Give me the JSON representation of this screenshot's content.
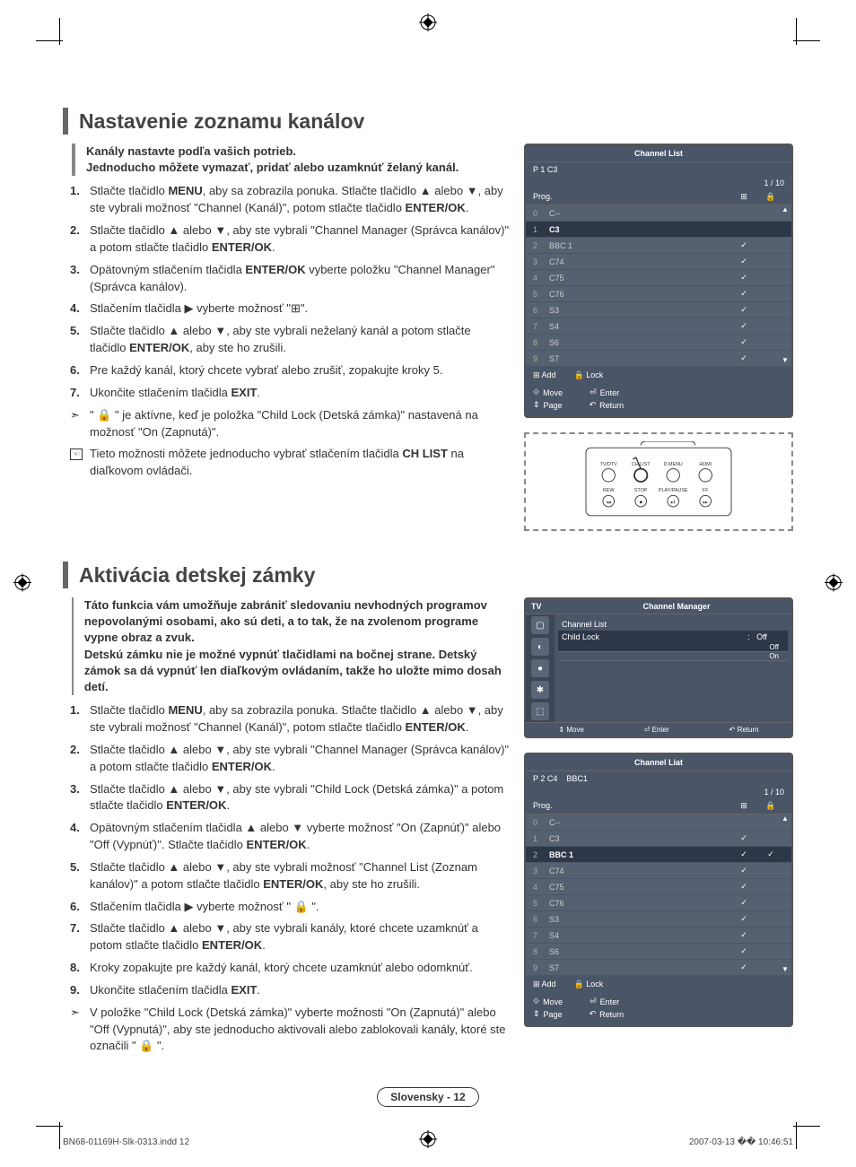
{
  "section1": {
    "heading": "Nastavenie zoznamu kanálov",
    "intro_l1": "Kanály nastavte podľa vašich potrieb.",
    "intro_l2": "Jednoducho môžete vymazať, pridať alebo uzamknúť želaný kanál.",
    "steps": [
      "Stlačte tlačidlo <b>MENU</b>, aby sa zobrazila ponuka. Stlačte tlačidlo ▲ alebo ▼, aby ste vybrali možnosť \"Channel (Kanál)\", potom stlačte tlačidlo <b>ENTER/OK</b>.",
      "Stlačte tlačidlo ▲ alebo ▼, aby ste vybrali \"Channel Manager (Správca kanálov)\" a potom stlačte tlačidlo <b>ENTER/OK</b>.",
      "Opätovným stlačením tlačidla <b>ENTER/OK</b> vyberte položku \"Channel Manager\" (Správca kanálov).",
      "Stlačením tlačidla ▶ vyberte možnosť \"⊞\".",
      "Stlačte tlačidlo ▲ alebo ▼, aby ste vybrali neželaný kanál a potom stlačte tlačidlo <b>ENTER/OK</b>, aby ste ho zrušili.",
      "Pre každý kanál, ktorý chcete vybrať alebo zrušiť, zopakujte kroky 5.",
      "Ukončite stlačením tlačidla <b>EXIT</b>."
    ],
    "note1": "\" 🔒 \" je aktívne, keď je položka \"Child Lock (Detská zámka)\" nastavená na možnosť \"On (Zapnutá)\".",
    "note2": "Tieto možnosti môžete jednoducho vybrať stlačením tlačidla <b>CH LIST</b> na diaľkovom ovládači."
  },
  "section2": {
    "heading": "Aktivácia detskej zámky",
    "intro": "Táto funkcia vám umožňuje zabrániť sledovaniu nevhodných programov nepovolanými osobami, ako sú deti, a to tak, že na zvolenom programe vypne obraz a zvuk.\nDetskú zámku nie je možné vypnúť tlačidlami na bočnej strane. Detský zámok sa dá vypnúť len diaľkovým ovládaním, takže ho uložte mimo dosah detí.",
    "steps": [
      "Stlačte tlačidlo <b>MENU</b>, aby sa zobrazila ponuka. Stlačte tlačidlo ▲ alebo ▼, aby ste vybrali možnosť \"Channel (Kanál)\", potom stlačte tlačidlo <b>ENTER/OK</b>.",
      "Stlačte tlačidlo ▲ alebo ▼, aby ste vybrali \"Channel Manager (Správca kanálov)\" a potom stlačte tlačidlo <b>ENTER/OK</b>.",
      "Stlačte tlačidlo ▲ alebo ▼, aby ste vybrali \"Child Lock (Detská zámka)\" a potom stlačte tlačidlo <b>ENTER/OK</b>.",
      "Opätovným stlačením tlačidla ▲ alebo ▼ vyberte možnosť \"On (Zapnúť)\" alebo \"Off (Vypnúť)\". Stlačte tlačidlo <b>ENTER/OK</b>.",
      "Stlačte tlačidlo ▲ alebo ▼, aby ste vybrali možnosť \"Channel List (Zoznam kanálov)\" a potom stlačte tlačidlo <b>ENTER/OK</b>, aby ste ho zrušili.",
      "Stlačením tlačidla ▶ vyberte možnosť \" 🔒 \".",
      "Stlačte tlačidlo ▲ alebo ▼, aby ste vybrali kanály, ktoré chcete uzamknúť a potom stlačte tlačidlo <b>ENTER/OK</b>.",
      "Kroky zopakujte pre každý kanál, ktorý chcete uzamknúť alebo odomknúť.",
      "Ukončite stlačením tlačidla <b>EXIT</b>."
    ],
    "note1": "V položke \"Child Lock (Detská zámka)\" vyberte možnosti \"On (Zapnutá)\" alebo \"Off (Vypnutá)\", aby ste jednoducho aktivovali alebo zablokovali kanály, ktoré ste označili \" 🔒 \"."
  },
  "osd1": {
    "title": "Channel List",
    "sub": "P  1  C3",
    "counter": "1 / 10",
    "prog": "Prog.",
    "rows": [
      {
        "n": "0",
        "name": "C--",
        "add": "",
        "lock": "",
        "hl": false
      },
      {
        "n": "1",
        "name": "C3",
        "add": "",
        "lock": "",
        "hl": true
      },
      {
        "n": "2",
        "name": "BBC 1",
        "add": "✓",
        "lock": "",
        "hl": false
      },
      {
        "n": "3",
        "name": "C74",
        "add": "✓",
        "lock": "",
        "hl": false
      },
      {
        "n": "4",
        "name": "C75",
        "add": "✓",
        "lock": "",
        "hl": false
      },
      {
        "n": "5",
        "name": "C76",
        "add": "✓",
        "lock": "",
        "hl": false
      },
      {
        "n": "6",
        "name": "S3",
        "add": "✓",
        "lock": "",
        "hl": false
      },
      {
        "n": "7",
        "name": "S4",
        "add": "✓",
        "lock": "",
        "hl": false
      },
      {
        "n": "8",
        "name": "S6",
        "add": "✓",
        "lock": "",
        "hl": false
      },
      {
        "n": "9",
        "name": "S7",
        "add": "✓",
        "lock": "",
        "hl": false
      }
    ],
    "f_add": "Add",
    "f_lock": "Lock",
    "f_move": "Move",
    "f_enter": "Enter",
    "f_page": "Page",
    "f_return": "Return"
  },
  "remote": {
    "labels": [
      "TV/DTV",
      "CH LIST",
      "D.MENU",
      "HDMI",
      "REW",
      "STOP",
      "PLAY/PAUSE",
      "FF"
    ]
  },
  "menu_osd": {
    "tv": "TV",
    "title": "Channel Manager",
    "row1": "Channel List",
    "row2": "Child Lock",
    "col": ":",
    "off": "Off",
    "on": "On",
    "f_move": "Move",
    "f_enter": "Enter",
    "f_return": "Return"
  },
  "osd2": {
    "title": "Channel Liat",
    "sub": "P  2  C4",
    "sub2": "BBC1",
    "counter": "1 / 10",
    "prog": "Prog.",
    "rows": [
      {
        "n": "0",
        "name": "C--",
        "add": "",
        "lock": "",
        "hl": false
      },
      {
        "n": "1",
        "name": "C3",
        "add": "✓",
        "lock": "",
        "hl": false
      },
      {
        "n": "2",
        "name": "BBC 1",
        "add": "✓",
        "lock": "✓",
        "hl": true
      },
      {
        "n": "3",
        "name": "C74",
        "add": "✓",
        "lock": "",
        "hl": false
      },
      {
        "n": "4",
        "name": "C75",
        "add": "✓",
        "lock": "",
        "hl": false
      },
      {
        "n": "5",
        "name": "C76",
        "add": "✓",
        "lock": "",
        "hl": false
      },
      {
        "n": "6",
        "name": "S3",
        "add": "✓",
        "lock": "",
        "hl": false
      },
      {
        "n": "7",
        "name": "S4",
        "add": "✓",
        "lock": "",
        "hl": false
      },
      {
        "n": "8",
        "name": "S6",
        "add": "✓",
        "lock": "",
        "hl": false
      },
      {
        "n": "9",
        "name": "S7",
        "add": "✓",
        "lock": "",
        "hl": false
      }
    ],
    "f_add": "Add",
    "f_lock": "Lock",
    "f_move": "Move",
    "f_enter": "Enter",
    "f_page": "Page",
    "f_return": "Return"
  },
  "page_label": "Slovensky - 12",
  "footer_left": "BN68-01169H-Slk-0313.indd   12",
  "footer_right": "2007-03-13   �� 10:46:51"
}
